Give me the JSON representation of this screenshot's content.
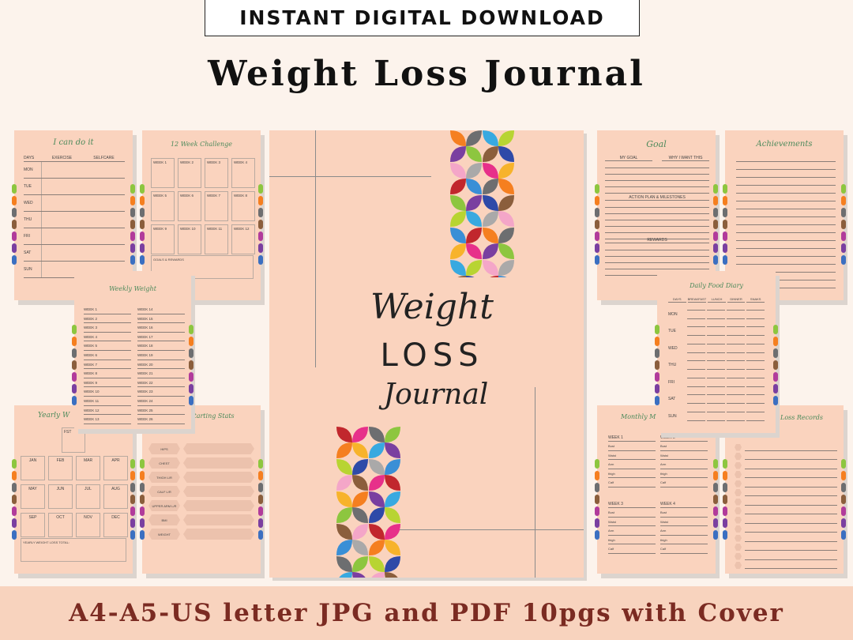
{
  "banner": "INSTANT DIGITAL DOWNLOAD",
  "title": "Weight Loss Journal",
  "footer": "A4-A5-US letter JPG and PDF 10pgs with Cover",
  "tab_colors": [
    "#8dc63f",
    "#f57f20",
    "#6d6e70",
    "#8b5e3c",
    "#b13b9b",
    "#7a3fa0",
    "#3b6fc1"
  ],
  "cover": {
    "line1": "Weight",
    "line2": "LOSS",
    "line3": "Journal",
    "petal_colors": [
      "#f57f20",
      "#b8d432",
      "#3a8fd6",
      "#6d6e70",
      "#2e4aa8",
      "#c1272d",
      "#8dc63f",
      "#8b5e3c",
      "#e7308a",
      "#7a3fa0",
      "#f4a6c8",
      "#f7b32b",
      "#38a9e0",
      "#aaa9a9"
    ]
  },
  "icandoit": {
    "title": "I can do it",
    "headers": [
      "DAYS",
      "EXERCISE",
      "SELFCARE"
    ],
    "days": [
      "MON",
      "TUE",
      "WED",
      "THU",
      "FRI",
      "SAT",
      "SUN"
    ]
  },
  "challenge": {
    "title": "12 Week Challenge",
    "weeks": [
      "WEEK 1",
      "WEEK 2",
      "WEEK 3",
      "WEEK 4",
      "WEEK 5",
      "WEEK 6",
      "WEEK 7",
      "WEEK 8",
      "WEEK 9",
      "WEEK 10",
      "WEEK 11",
      "WEEK 12"
    ],
    "goals_label": "GOALS & REWARDS"
  },
  "weekly_weight": {
    "title": "Weekly Weight",
    "col1": [
      "WEEK 1",
      "WEEK 2",
      "WEEK 3",
      "WEEK 4",
      "WEEK 5",
      "WEEK 6",
      "WEEK 7",
      "WEEK 8",
      "WEEK 9",
      "WEEK 10",
      "WEEK 11",
      "WEEK 12",
      "WEEK 13"
    ],
    "col2": [
      "WEEK 14",
      "WEEK 15",
      "WEEK 16",
      "WEEK 17",
      "WEEK 18",
      "WEEK 19",
      "WEEK 20",
      "WEEK 21",
      "WEEK 22",
      "WEEK 23",
      "WEEK 24",
      "WEEK 25",
      "WEEK 26"
    ]
  },
  "yearly": {
    "title": "Yearly W",
    "start_label": "FST",
    "months": [
      "JAN",
      "FEB",
      "MAR",
      "APR",
      "MAY",
      "JUN",
      "JUL",
      "AUG",
      "SEP",
      "OCT",
      "NOV",
      "DEC"
    ],
    "total_label": "YEARLY WEIGHT LOSS TOTAL:"
  },
  "stats": {
    "title": "Starting Stats",
    "items": [
      "HIPS",
      "CHEST",
      "THIGH L/R",
      "CALF L/R",
      "UPPER ARM L/R",
      "BMI",
      "WEIGHT"
    ]
  },
  "goal": {
    "title": "Goal",
    "my_goal": "MY GOAL",
    "why": "WHY I WANT THIS",
    "plan": "ACTION PLAN & MILESTONES",
    "rewards": "REWARDS"
  },
  "achievements": {
    "title": "Achievements"
  },
  "food_diary": {
    "title": "Daily Food Diary",
    "headers": [
      "DAYS",
      "BREAKFAST",
      "LUNCH",
      "DINNER",
      "SNAKS"
    ],
    "days": [
      "MON",
      "TUE",
      "WED",
      "THU",
      "FRI",
      "SAT",
      "SUN"
    ]
  },
  "monthly": {
    "title": "Monthly M",
    "weeks": [
      "WEEK 1",
      "WEEK 2",
      "WEEK 3",
      "WEEK 4"
    ],
    "parts": [
      "Bust",
      "Waist",
      "Arm",
      "thigh",
      "Calf"
    ]
  },
  "records": {
    "title": "Loss Records"
  }
}
